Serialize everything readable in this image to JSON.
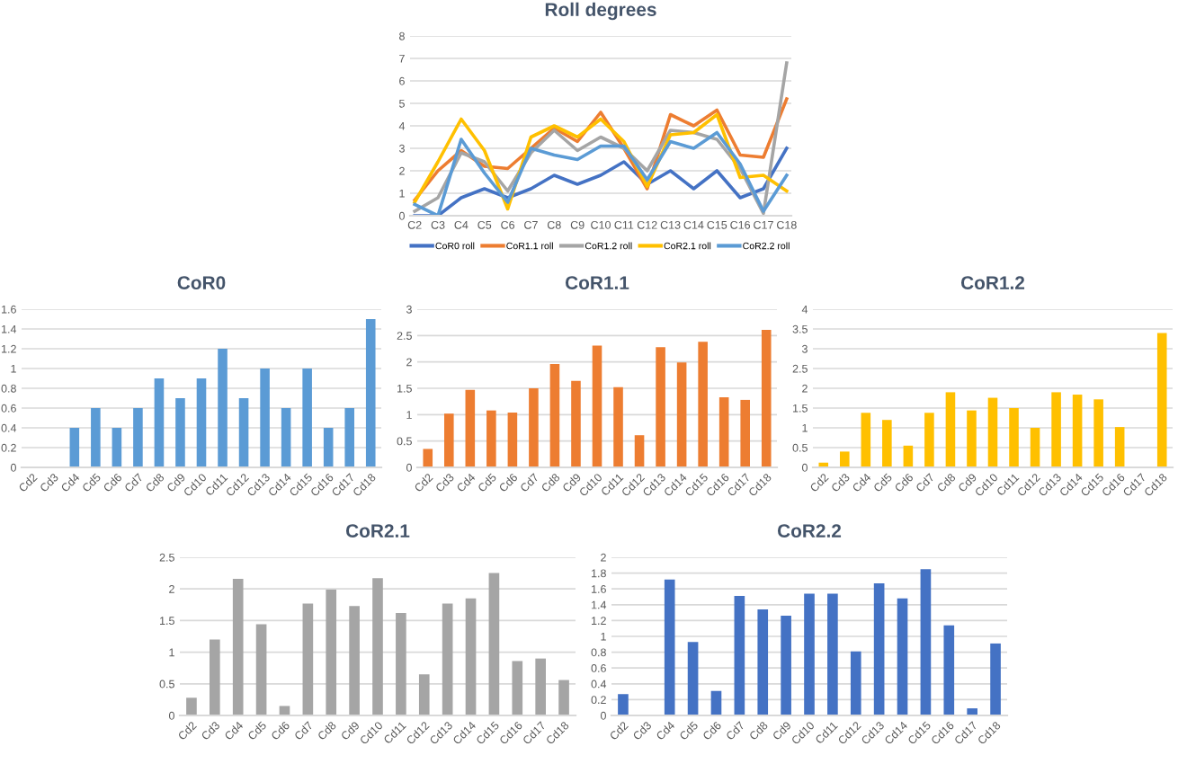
{
  "chart_data": [
    {
      "type": "line",
      "title": "Roll degrees",
      "categories": [
        "C2",
        "C3",
        "C4",
        "C5",
        "C6",
        "C7",
        "C8",
        "C9",
        "C10",
        "C11",
        "C12",
        "C13",
        "C14",
        "C15",
        "C16",
        "C17",
        "C18"
      ],
      "ylim": [
        0,
        8
      ],
      "yticks": [
        0,
        1,
        2,
        3,
        4,
        5,
        6,
        7,
        8
      ],
      "grid": "y",
      "legend": "bottom",
      "series": [
        {
          "name": "CoR0 roll",
          "color": "#4472c4",
          "values": [
            0,
            0,
            0.8,
            1.2,
            0.8,
            1.2,
            1.8,
            1.4,
            1.8,
            2.4,
            1.4,
            2.0,
            1.2,
            2.0,
            0.8,
            1.2,
            3.0
          ]
        },
        {
          "name": "CoR1.1 roll",
          "color": "#ed7d31",
          "values": [
            0.7,
            2.0,
            2.9,
            2.2,
            2.1,
            3.0,
            3.9,
            3.3,
            4.6,
            3.0,
            1.2,
            4.5,
            4.0,
            4.7,
            2.7,
            2.6,
            5.2
          ]
        },
        {
          "name": "CoR1.2 roll",
          "color": "#a5a5a5",
          "values": [
            0.2,
            0.8,
            2.8,
            2.4,
            1.1,
            2.8,
            3.8,
            2.9,
            3.5,
            3.0,
            2.0,
            3.8,
            3.7,
            3.4,
            2.1,
            0.1,
            6.8
          ]
        },
        {
          "name": "CoR2.1 roll",
          "color": "#ffc000",
          "values": [
            0.6,
            2.4,
            4.3,
            2.9,
            0.3,
            3.5,
            4.0,
            3.5,
            4.3,
            3.3,
            1.3,
            3.6,
            3.7,
            4.5,
            1.7,
            1.8,
            1.1
          ]
        },
        {
          "name": "CoR2.2 roll",
          "color": "#5b9bd5",
          "values": [
            0.5,
            0,
            3.4,
            1.9,
            0.6,
            3.0,
            2.7,
            2.5,
            3.1,
            3.1,
            1.6,
            3.3,
            3.0,
            3.7,
            2.3,
            0.2,
            1.8
          ]
        }
      ]
    },
    {
      "type": "bar",
      "title": "CoR0",
      "categories": [
        "Cd2",
        "Cd3",
        "Cd4",
        "Cd5",
        "Cd6",
        "Cd7",
        "Cd8",
        "Cd9",
        "Cd10",
        "Cd11",
        "Cd12",
        "Cd13",
        "Cd14",
        "Cd15",
        "Cd16",
        "Cd17",
        "Cd18"
      ],
      "ylim": [
        0,
        1.6
      ],
      "yticks": [
        0,
        0.2,
        0.4,
        0.6,
        0.8,
        1,
        1.2,
        1.4,
        1.6
      ],
      "grid": "y",
      "series": [
        {
          "color": "#5b9bd5",
          "values": [
            0,
            0,
            0.4,
            0.6,
            0.4,
            0.6,
            0.9,
            0.7,
            0.9,
            1.2,
            0.7,
            1.0,
            0.6,
            1.0,
            0.4,
            0.6,
            1.5
          ]
        }
      ]
    },
    {
      "type": "bar",
      "title": "CoR1.1",
      "categories": [
        "Cd2",
        "Cd3",
        "Cd4",
        "Cd5",
        "Cd6",
        "Cd7",
        "Cd8",
        "Cd9",
        "Cd10",
        "Cd11",
        "Cd12",
        "Cd13",
        "Cd14",
        "Cd15",
        "Cd16",
        "Cd17",
        "Cd18"
      ],
      "ylim": [
        0,
        3
      ],
      "yticks": [
        0,
        0.5,
        1,
        1.5,
        2,
        2.5,
        3
      ],
      "grid": "y",
      "series": [
        {
          "color": "#ed7d31",
          "values": [
            0.35,
            1.02,
            1.47,
            1.08,
            1.04,
            1.5,
            1.96,
            1.64,
            2.31,
            1.52,
            0.61,
            2.28,
            1.99,
            2.38,
            1.33,
            1.28,
            2.61
          ]
        }
      ]
    },
    {
      "type": "bar",
      "title": "CoR1.2",
      "categories": [
        "Cd2",
        "Cd3",
        "Cd4",
        "Cd5",
        "Cd6",
        "Cd7",
        "Cd8",
        "Cd9",
        "Cd10",
        "Cd11",
        "Cd12",
        "Cd13",
        "Cd14",
        "Cd15",
        "Cd16",
        "Cd17",
        "Cd18"
      ],
      "ylim": [
        0,
        4
      ],
      "yticks": [
        0,
        0.5,
        1,
        1.5,
        2,
        2.5,
        3,
        3.5,
        4
      ],
      "grid": "y",
      "series": [
        {
          "color": "#ffc000",
          "values": [
            0.12,
            0.4,
            1.38,
            1.2,
            0.55,
            1.38,
            1.9,
            1.44,
            1.76,
            1.5,
            1.0,
            1.9,
            1.84,
            1.72,
            1.02,
            null,
            3.4
          ]
        }
      ]
    },
    {
      "type": "bar",
      "title": "CoR2.1",
      "categories": [
        "Cd2",
        "Cd3",
        "Cd4",
        "Cd5",
        "Cd6",
        "Cd7",
        "Cd8",
        "Cd9",
        "Cd10",
        "Cd11",
        "Cd12",
        "Cd13",
        "Cd14",
        "Cd15",
        "Cd16",
        "Cd17",
        "Cd18"
      ],
      "ylim": [
        0,
        2.5
      ],
      "yticks": [
        0,
        0.5,
        1,
        1.5,
        2,
        2.5
      ],
      "grid": "y",
      "series": [
        {
          "color": "#a5a5a5",
          "values": [
            0.28,
            1.2,
            2.16,
            1.44,
            0.15,
            1.77,
            1.99,
            1.73,
            2.17,
            1.62,
            0.65,
            1.77,
            1.85,
            2.25,
            0.86,
            0.9,
            0.56
          ]
        }
      ]
    },
    {
      "type": "bar",
      "title": "CoR2.2",
      "categories": [
        "Cd2",
        "Cd3",
        "Cd4",
        "Cd5",
        "Cd6",
        "Cd7",
        "Cd8",
        "Cd9",
        "Cd10",
        "Cd11",
        "Cd12",
        "Cd13",
        "Cd14",
        "Cd15",
        "Cd16",
        "Cd17",
        "Cd18"
      ],
      "ylim": [
        0,
        2
      ],
      "yticks": [
        0,
        0.2,
        0.4,
        0.6,
        0.8,
        1,
        1.2,
        1.4,
        1.6,
        1.8,
        2
      ],
      "grid": "y",
      "series": [
        {
          "color": "#4472c4",
          "values": [
            0.27,
            0,
            1.72,
            0.93,
            0.31,
            1.51,
            1.34,
            1.26,
            1.54,
            1.54,
            0.81,
            1.67,
            1.48,
            1.85,
            1.14,
            0.09,
            0.91
          ]
        }
      ]
    }
  ]
}
